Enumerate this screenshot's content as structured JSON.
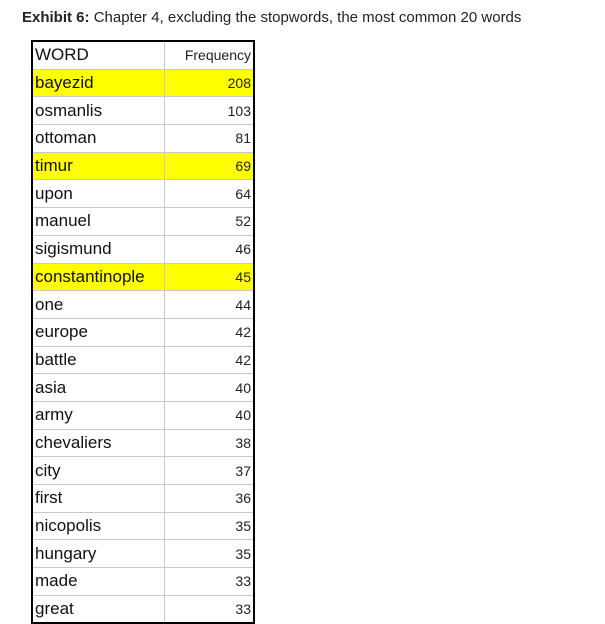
{
  "caption": {
    "label": "Exhibit 6:",
    "text": "Chapter 4, excluding the stopwords, the most common 20 words"
  },
  "table": {
    "headers": [
      "WORD",
      "Frequency"
    ],
    "highlight_color": "#ffff00",
    "rows": [
      {
        "word": "bayezid",
        "freq": "208",
        "highlight": true
      },
      {
        "word": "osmanlis",
        "freq": "103",
        "highlight": false
      },
      {
        "word": "ottoman",
        "freq": "81",
        "highlight": false
      },
      {
        "word": "timur",
        "freq": "69",
        "highlight": true
      },
      {
        "word": "upon",
        "freq": "64",
        "highlight": false
      },
      {
        "word": "manuel",
        "freq": "52",
        "highlight": false
      },
      {
        "word": "sigismund",
        "freq": "46",
        "highlight": false
      },
      {
        "word": "constantinople",
        "freq": "45",
        "highlight": true
      },
      {
        "word": "one",
        "freq": "44",
        "highlight": false
      },
      {
        "word": "europe",
        "freq": "42",
        "highlight": false
      },
      {
        "word": "battle",
        "freq": "42",
        "highlight": false
      },
      {
        "word": "asia",
        "freq": "40",
        "highlight": false
      },
      {
        "word": "army",
        "freq": "40",
        "highlight": false
      },
      {
        "word": "chevaliers",
        "freq": "38",
        "highlight": false
      },
      {
        "word": "city",
        "freq": "37",
        "highlight": false
      },
      {
        "word": "first",
        "freq": "36",
        "highlight": false
      },
      {
        "word": "nicopolis",
        "freq": "35",
        "highlight": false
      },
      {
        "word": "hungary",
        "freq": "35",
        "highlight": false
      },
      {
        "word": "made",
        "freq": "33",
        "highlight": false
      },
      {
        "word": "great",
        "freq": "33",
        "highlight": false
      }
    ]
  }
}
